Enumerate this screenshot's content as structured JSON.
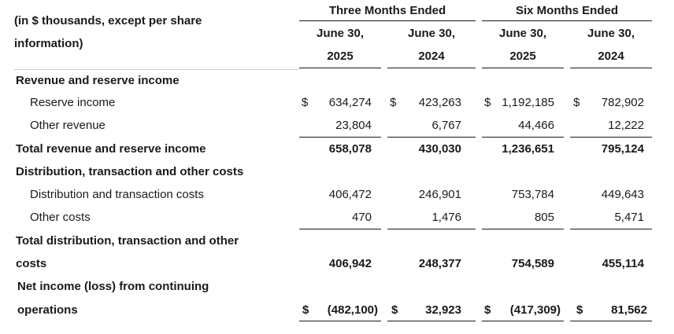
{
  "header": {
    "units_note": "(in $ thousands, except per share information)",
    "units_line1": "(in $ thousands, except per share",
    "units_line2": "information)",
    "group_three": "Three Months Ended",
    "group_six": "Six Months Ended",
    "columns": [
      {
        "month": "June 30,",
        "year": "2025"
      },
      {
        "month": "June 30,",
        "year": "2024"
      },
      {
        "month": "June 30,",
        "year": "2025"
      },
      {
        "month": "June 30,",
        "year": "2024"
      }
    ]
  },
  "currency_symbol": "$",
  "rows": {
    "revenue_section": "Revenue and reserve income",
    "reserve_income": {
      "label": "Reserve income",
      "values": [
        "634,274",
        "423,263",
        "1,192,185",
        "782,902"
      ]
    },
    "other_revenue": {
      "label": "Other revenue",
      "values": [
        "23,804",
        "6,767",
        "44,466",
        "12,222"
      ]
    },
    "total_revenue": {
      "label": "Total revenue and reserve income",
      "values": [
        "658,078",
        "430,030",
        "1,236,651",
        "795,124"
      ]
    },
    "costs_section": "Distribution, transaction and other costs",
    "distribution_costs": {
      "label": "Distribution and transaction costs",
      "values": [
        "406,472",
        "246,901",
        "753,784",
        "449,643"
      ]
    },
    "other_costs": {
      "label": "Other costs",
      "values": [
        "470",
        "1,476",
        "805",
        "5,471"
      ]
    },
    "total_costs": {
      "label_line1": "Total distribution, transaction and other",
      "label_line2": "costs",
      "values": [
        "406,942",
        "248,377",
        "754,589",
        "455,114"
      ]
    },
    "net_income": {
      "label_line1": "Net income (loss) from continuing",
      "label_line2": "operations",
      "values": [
        "(482,100)",
        "32,923",
        "(417,309)",
        "81,562"
      ]
    }
  }
}
